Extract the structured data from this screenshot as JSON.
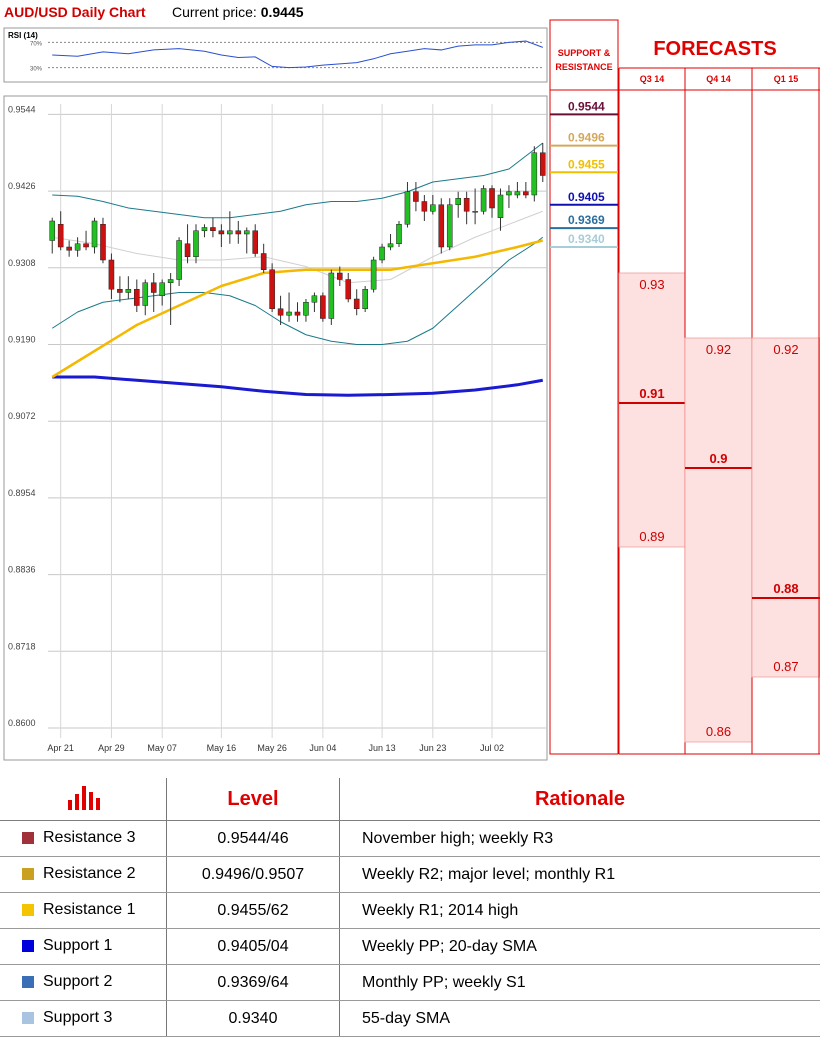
{
  "header": {
    "title": "AUD/USD Daily Chart",
    "price_label": "Current price:",
    "price_value": "0.9445"
  },
  "colors": {
    "bull": "#22c022",
    "bear": "#cc1111",
    "sma_yellow": "#f5b800",
    "sma_blue": "#1a1ad0",
    "boll": "#1a7a8a",
    "sma20": "#d0d0d0",
    "forecast_red": "#e00000",
    "forecast_fill": "#fde0e0"
  },
  "chart_data": {
    "type": "candlestick",
    "ylim": [
      0.86,
      0.956
    ],
    "yticks": [
      "0.9544",
      "0.9426",
      "0.9308",
      "0.9190",
      "0.9072",
      "0.8954",
      "0.8836",
      "0.8718",
      "0.8600"
    ],
    "xticks": [
      {
        "label": "Apr 21",
        "i": 1
      },
      {
        "label": "Apr 29",
        "i": 7
      },
      {
        "label": "May 07",
        "i": 13
      },
      {
        "label": "May 16",
        "i": 20
      },
      {
        "label": "May 26",
        "i": 26
      },
      {
        "label": "Jun 04",
        "i": 32
      },
      {
        "label": "Jun 13",
        "i": 39
      },
      {
        "label": "Jun 23",
        "i": 45
      },
      {
        "label": "Jul 02",
        "i": 52
      }
    ],
    "ohlc": [
      [
        0.935,
        0.9385,
        0.933,
        0.938
      ],
      [
        0.9375,
        0.9395,
        0.9335,
        0.934
      ],
      [
        0.934,
        0.935,
        0.9325,
        0.9335
      ],
      [
        0.9335,
        0.9355,
        0.9325,
        0.9345
      ],
      [
        0.9345,
        0.9365,
        0.9335,
        0.934
      ],
      [
        0.934,
        0.9385,
        0.933,
        0.938
      ],
      [
        0.9375,
        0.9385,
        0.9315,
        0.932
      ],
      [
        0.932,
        0.933,
        0.926,
        0.9275
      ],
      [
        0.9275,
        0.9295,
        0.9255,
        0.927
      ],
      [
        0.927,
        0.9295,
        0.926,
        0.9275
      ],
      [
        0.9275,
        0.929,
        0.924,
        0.925
      ],
      [
        0.925,
        0.929,
        0.9235,
        0.9285
      ],
      [
        0.9285,
        0.93,
        0.924,
        0.927
      ],
      [
        0.9265,
        0.929,
        0.925,
        0.9285
      ],
      [
        0.9285,
        0.93,
        0.922,
        0.929
      ],
      [
        0.929,
        0.9355,
        0.928,
        0.935
      ],
      [
        0.9345,
        0.9375,
        0.9315,
        0.9325
      ],
      [
        0.9325,
        0.9375,
        0.9315,
        0.9365
      ],
      [
        0.9365,
        0.9375,
        0.9355,
        0.937
      ],
      [
        0.937,
        0.9385,
        0.9355,
        0.9365
      ],
      [
        0.9365,
        0.9375,
        0.934,
        0.936
      ],
      [
        0.936,
        0.9395,
        0.9345,
        0.9365
      ],
      [
        0.9365,
        0.938,
        0.9345,
        0.936
      ],
      [
        0.936,
        0.937,
        0.933,
        0.9365
      ],
      [
        0.9365,
        0.9375,
        0.9325,
        0.933
      ],
      [
        0.933,
        0.9345,
        0.93,
        0.9305
      ],
      [
        0.9305,
        0.9315,
        0.924,
        0.9245
      ],
      [
        0.9245,
        0.9265,
        0.922,
        0.9235
      ],
      [
        0.9235,
        0.927,
        0.9225,
        0.924
      ],
      [
        0.924,
        0.9255,
        0.9225,
        0.9235
      ],
      [
        0.9235,
        0.926,
        0.9225,
        0.9255
      ],
      [
        0.9255,
        0.927,
        0.924,
        0.9265
      ],
      [
        0.9265,
        0.927,
        0.9225,
        0.923
      ],
      [
        0.923,
        0.9305,
        0.922,
        0.93
      ],
      [
        0.93,
        0.931,
        0.928,
        0.929
      ],
      [
        0.929,
        0.93,
        0.9255,
        0.926
      ],
      [
        0.926,
        0.9275,
        0.9235,
        0.9245
      ],
      [
        0.9245,
        0.928,
        0.924,
        0.9275
      ],
      [
        0.9275,
        0.9325,
        0.927,
        0.932
      ],
      [
        0.932,
        0.9345,
        0.9315,
        0.934
      ],
      [
        0.934,
        0.936,
        0.9335,
        0.9345
      ],
      [
        0.9345,
        0.938,
        0.934,
        0.9375
      ],
      [
        0.9375,
        0.944,
        0.937,
        0.9425
      ],
      [
        0.9425,
        0.944,
        0.9395,
        0.941
      ],
      [
        0.941,
        0.942,
        0.938,
        0.9395
      ],
      [
        0.9395,
        0.942,
        0.939,
        0.9405
      ],
      [
        0.9405,
        0.9415,
        0.933,
        0.934
      ],
      [
        0.934,
        0.9415,
        0.9335,
        0.9405
      ],
      [
        0.9405,
        0.9425,
        0.9385,
        0.9415
      ],
      [
        0.9415,
        0.9425,
        0.9375,
        0.9395
      ],
      [
        0.9395,
        0.943,
        0.9375,
        0.9395
      ],
      [
        0.9395,
        0.9435,
        0.939,
        0.943
      ],
      [
        0.943,
        0.9435,
        0.9385,
        0.94
      ],
      [
        0.9385,
        0.943,
        0.9365,
        0.942
      ],
      [
        0.942,
        0.9435,
        0.94,
        0.9425
      ],
      [
        0.942,
        0.944,
        0.9415,
        0.9425
      ],
      [
        0.9425,
        0.944,
        0.9415,
        0.942
      ],
      [
        0.942,
        0.9495,
        0.941,
        0.9485
      ],
      [
        0.9485,
        0.95,
        0.944,
        0.945
      ]
    ],
    "sma55_yellow": [
      [
        0,
        0.914
      ],
      [
        5,
        0.918
      ],
      [
        10,
        0.922
      ],
      [
        15,
        0.925
      ],
      [
        20,
        0.928
      ],
      [
        25,
        0.93
      ],
      [
        30,
        0.9305
      ],
      [
        35,
        0.9305
      ],
      [
        40,
        0.9305
      ],
      [
        45,
        0.9315
      ],
      [
        50,
        0.9325
      ],
      [
        55,
        0.934
      ],
      [
        58,
        0.935
      ]
    ],
    "sma200_blue": [
      [
        0,
        0.914
      ],
      [
        5,
        0.914
      ],
      [
        10,
        0.9135
      ],
      [
        15,
        0.913
      ],
      [
        20,
        0.9125
      ],
      [
        25,
        0.9118
      ],
      [
        30,
        0.9113
      ],
      [
        35,
        0.9112
      ],
      [
        40,
        0.9113
      ],
      [
        45,
        0.9115
      ],
      [
        50,
        0.912
      ],
      [
        55,
        0.9128
      ],
      [
        58,
        0.9135
      ]
    ],
    "boll_upper": [
      [
        0,
        0.942
      ],
      [
        3,
        0.9418
      ],
      [
        6,
        0.941
      ],
      [
        9,
        0.94
      ],
      [
        12,
        0.9395
      ],
      [
        15,
        0.939
      ],
      [
        18,
        0.9385
      ],
      [
        21,
        0.9385
      ],
      [
        24,
        0.939
      ],
      [
        27,
        0.9395
      ],
      [
        30,
        0.9405
      ],
      [
        33,
        0.941
      ],
      [
        36,
        0.941
      ],
      [
        39,
        0.9415
      ],
      [
        42,
        0.9425
      ],
      [
        45,
        0.944
      ],
      [
        48,
        0.9445
      ],
      [
        51,
        0.945
      ],
      [
        54,
        0.946
      ],
      [
        57,
        0.949
      ],
      [
        58,
        0.95
      ]
    ],
    "boll_lower": [
      [
        0,
        0.9215
      ],
      [
        3,
        0.924
      ],
      [
        6,
        0.9255
      ],
      [
        9,
        0.926
      ],
      [
        12,
        0.9265
      ],
      [
        15,
        0.927
      ],
      [
        18,
        0.927
      ],
      [
        21,
        0.9265
      ],
      [
        24,
        0.925
      ],
      [
        27,
        0.9225
      ],
      [
        30,
        0.9205
      ],
      [
        33,
        0.9195
      ],
      [
        36,
        0.919
      ],
      [
        39,
        0.919
      ],
      [
        42,
        0.9195
      ],
      [
        45,
        0.9215
      ],
      [
        48,
        0.925
      ],
      [
        51,
        0.9285
      ],
      [
        54,
        0.932
      ],
      [
        57,
        0.9345
      ],
      [
        58,
        0.9355
      ]
    ],
    "sma20_gray": [
      [
        0,
        0.9355
      ],
      [
        5,
        0.9345
      ],
      [
        10,
        0.933
      ],
      [
        15,
        0.932
      ],
      [
        20,
        0.932
      ],
      [
        25,
        0.9325
      ],
      [
        30,
        0.931
      ],
      [
        35,
        0.9285
      ],
      [
        40,
        0.929
      ],
      [
        45,
        0.9325
      ],
      [
        50,
        0.9355
      ],
      [
        55,
        0.938
      ],
      [
        58,
        0.9395
      ]
    ],
    "rsi": {
      "label": "RSI (14)",
      "ticks": [
        "70%",
        "30%"
      ],
      "values": [
        [
          0,
          50
        ],
        [
          3,
          48
        ],
        [
          6,
          55
        ],
        [
          9,
          52
        ],
        [
          12,
          58
        ],
        [
          15,
          60
        ],
        [
          18,
          56
        ],
        [
          20,
          50
        ],
        [
          22,
          46
        ],
        [
          24,
          47
        ],
        [
          26,
          32
        ],
        [
          28,
          30
        ],
        [
          30,
          31
        ],
        [
          32,
          34
        ],
        [
          34,
          36
        ],
        [
          36,
          38
        ],
        [
          38,
          44
        ],
        [
          40,
          52
        ],
        [
          42,
          56
        ],
        [
          44,
          60
        ],
        [
          46,
          58
        ],
        [
          48,
          64
        ],
        [
          50,
          66
        ],
        [
          52,
          66
        ],
        [
          54,
          70
        ],
        [
          56,
          72
        ],
        [
          58,
          62
        ]
      ]
    }
  },
  "support_resistance": {
    "title_line1": "SUPPORT &",
    "title_line2": "RESISTANCE",
    "levels": [
      {
        "label": "0.9544",
        "value": 0.9544,
        "color": "#6b0f3a"
      },
      {
        "label": "0.9496",
        "value": 0.9496,
        "color": "#d4a85a"
      },
      {
        "label": "0.9455",
        "value": 0.9455,
        "color": "#f0c000"
      },
      {
        "label": "0.9405",
        "value": 0.9405,
        "color": "#1010b0"
      },
      {
        "label": "0.9369",
        "value": 0.9369,
        "color": "#2a6e9e"
      },
      {
        "label": "0.9340",
        "value": 0.934,
        "color": "#a8cdd8"
      }
    ]
  },
  "forecasts": {
    "title": "FORECASTS",
    "columns": [
      {
        "label": "Q3 14",
        "high": "0.93",
        "mid": "0.91",
        "low": "0.89",
        "high_v": 0.93,
        "mid_v": 0.91,
        "low_v": 0.89
      },
      {
        "label": "Q4 14",
        "high": "0.92",
        "mid": "0.9",
        "low": "0.86",
        "high_v": 0.92,
        "mid_v": 0.9,
        "low_v": 0.86
      },
      {
        "label": "Q1 15",
        "high": "0.92",
        "mid": "0.88",
        "low": "0.87",
        "high_v": 0.92,
        "mid_v": 0.88,
        "low_v": 0.87
      }
    ]
  },
  "levels_table": {
    "header_level": "Level",
    "header_rationale": "Rationale",
    "icon": "bar-chart-icon",
    "rows": [
      {
        "name": "Resistance 3",
        "level": "0.9544/46",
        "rationale": "November high; weekly R3",
        "color": "#a0303a"
      },
      {
        "name": "Resistance 2",
        "level": "0.9496/0.9507",
        "rationale": "Weekly R2; major level; monthly R1",
        "color": "#c9a020"
      },
      {
        "name": "Resistance 1",
        "level": "0.9455/62",
        "rationale": "Weekly R1; 2014 high",
        "color": "#f5c400"
      },
      {
        "name": "Support 1",
        "level": "0.9405/04",
        "rationale": "Weekly PP;  20-day SMA",
        "color": "#0000dd"
      },
      {
        "name": "Support 2",
        "level": "0.9369/64",
        "rationale": "Monthly PP; weekly S1",
        "color": "#3a6fb5"
      },
      {
        "name": "Support 3",
        "level": "0.9340",
        "rationale": "55-day SMA",
        "color": "#a9c4e0"
      }
    ]
  }
}
